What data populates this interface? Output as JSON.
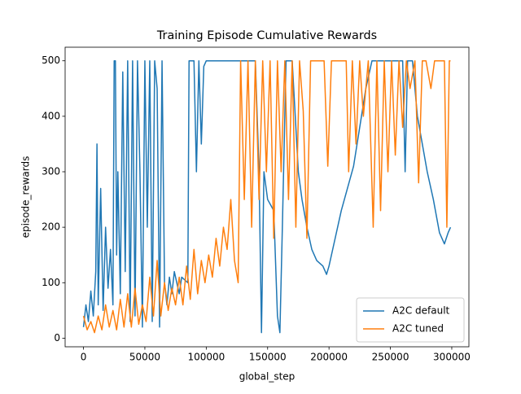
{
  "chart_data": {
    "type": "line",
    "title": "Training Episode Cumulative Rewards",
    "x_label": "global_step",
    "y_label": "episode_rewards",
    "xlim": [
      -14950,
      313950
    ],
    "ylim": [
      -15.5,
      524.5
    ],
    "xticks": [
      0,
      50000,
      100000,
      150000,
      200000,
      250000,
      300000
    ],
    "yticks": [
      0,
      100,
      200,
      300,
      400,
      500
    ],
    "grid": false,
    "legend": "lower right",
    "series": [
      {
        "name": "A2C default",
        "color": "#1f77b4",
        "x": [
          0,
          2000,
          4000,
          6000,
          8000,
          10000,
          11000,
          12000,
          14000,
          16000,
          18000,
          20000,
          22000,
          24000,
          25000,
          26000,
          27000,
          28000,
          30000,
          32000,
          34000,
          36000,
          38000,
          40000,
          42000,
          44000,
          46000,
          48000,
          50000,
          52000,
          54000,
          56000,
          58000,
          60000,
          62000,
          64000,
          66000,
          68000,
          70000,
          72000,
          74000,
          76000,
          78000,
          80000,
          85000,
          86000,
          90000,
          92000,
          94000,
          96000,
          98000,
          100000,
          105000,
          110000,
          120000,
          130000,
          140000,
          143000,
          145000,
          147000,
          150000,
          155000,
          158000,
          160000,
          162000,
          165000,
          170000,
          175000,
          178000,
          182000,
          186000,
          190000,
          195000,
          198000,
          200000,
          205000,
          210000,
          215000,
          220000,
          225000,
          230000,
          235000,
          240000,
          250000,
          260000,
          262000,
          264000,
          268000,
          272000,
          276000,
          280000,
          285000,
          290000,
          294000,
          297000,
          299000
        ],
        "values": [
          20,
          60,
          30,
          85,
          40,
          120,
          350,
          60,
          270,
          50,
          200,
          90,
          160,
          60,
          500,
          500,
          150,
          300,
          80,
          480,
          120,
          500,
          30,
          500,
          40,
          500,
          300,
          20,
          500,
          200,
          500,
          30,
          500,
          450,
          20,
          500,
          100,
          60,
          110,
          80,
          120,
          100,
          80,
          110,
          100,
          500,
          500,
          300,
          500,
          350,
          490,
          500,
          500,
          500,
          500,
          500,
          500,
          300,
          10,
          300,
          250,
          230,
          40,
          10,
          200,
          500,
          500,
          300,
          250,
          200,
          160,
          140,
          130,
          115,
          130,
          180,
          230,
          270,
          310,
          380,
          450,
          500,
          500,
          500,
          500,
          300,
          500,
          500,
          400,
          350,
          300,
          250,
          190,
          170,
          190,
          200
        ]
      },
      {
        "name": "A2C tuned",
        "color": "#ff7f0e",
        "x": [
          0,
          3000,
          6000,
          9000,
          12000,
          15000,
          18000,
          21000,
          24000,
          27000,
          30000,
          33000,
          36000,
          39000,
          42000,
          45000,
          48000,
          51000,
          54000,
          57000,
          60000,
          63000,
          66000,
          69000,
          72000,
          75000,
          78000,
          81000,
          84000,
          87000,
          90000,
          93000,
          96000,
          99000,
          102000,
          105000,
          108000,
          111000,
          114000,
          117000,
          120000,
          123000,
          126000,
          128000,
          131000,
          134000,
          137000,
          140000,
          143000,
          146000,
          149000,
          152000,
          155000,
          158000,
          161000,
          164000,
          167000,
          170000,
          173000,
          176000,
          179000,
          182000,
          185000,
          188000,
          192000,
          196000,
          199000,
          202000,
          206000,
          210000,
          214000,
          216000,
          219000,
          222000,
          225000,
          228000,
          232000,
          236000,
          239000,
          242000,
          245000,
          248000,
          251000,
          254000,
          257000,
          260000,
          263000,
          266000,
          270000,
          273000,
          276000,
          279000,
          283000,
          286000,
          290000,
          294000,
          296000,
          298000,
          299000
        ],
        "values": [
          40,
          15,
          30,
          10,
          40,
          15,
          60,
          20,
          50,
          15,
          70,
          20,
          80,
          20,
          90,
          25,
          60,
          30,
          110,
          40,
          140,
          40,
          100,
          50,
          90,
          60,
          110,
          60,
          130,
          70,
          160,
          80,
          140,
          100,
          150,
          110,
          180,
          130,
          200,
          160,
          250,
          140,
          100,
          500,
          250,
          500,
          200,
          500,
          250,
          500,
          300,
          500,
          180,
          500,
          300,
          500,
          250,
          500,
          200,
          500,
          410,
          180,
          500,
          500,
          500,
          500,
          310,
          500,
          500,
          500,
          500,
          300,
          500,
          350,
          500,
          400,
          500,
          200,
          500,
          230,
          500,
          300,
          500,
          330,
          500,
          380,
          500,
          450,
          500,
          280,
          500,
          500,
          450,
          500,
          500,
          500,
          200,
          500,
          500
        ]
      }
    ]
  }
}
